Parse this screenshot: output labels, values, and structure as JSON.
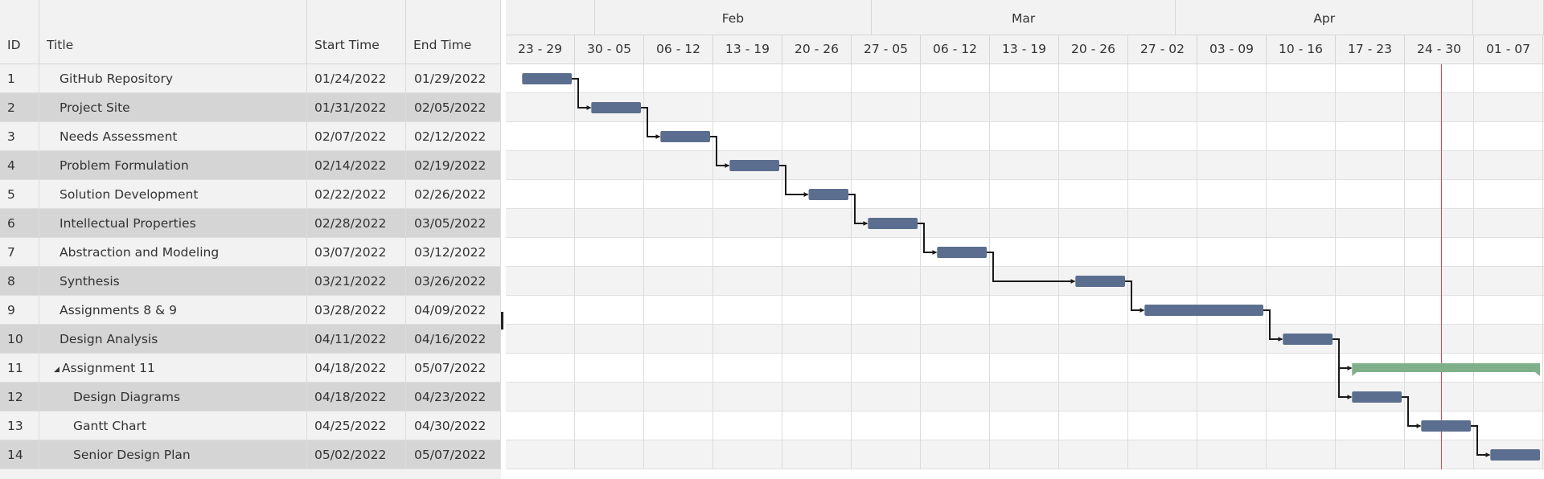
{
  "grid": {
    "columns": {
      "id": "ID",
      "title": "Title",
      "start": "Start Time",
      "end": "End Time"
    },
    "expander_icon": "triangle-down-icon",
    "tasks": [
      {
        "id": "1",
        "title": "GitHub Repository",
        "start": "01/24/2022",
        "end": "01/29/2022",
        "level": 1
      },
      {
        "id": "2",
        "title": "Project Site",
        "start": "01/31/2022",
        "end": "02/05/2022",
        "level": 1
      },
      {
        "id": "3",
        "title": "Needs Assessment",
        "start": "02/07/2022",
        "end": "02/12/2022",
        "level": 1
      },
      {
        "id": "4",
        "title": "Problem Formulation",
        "start": "02/14/2022",
        "end": "02/19/2022",
        "level": 1
      },
      {
        "id": "5",
        "title": "Solution Development",
        "start": "02/22/2022",
        "end": "02/26/2022",
        "level": 1
      },
      {
        "id": "6",
        "title": "Intellectual Properties",
        "start": "02/28/2022",
        "end": "03/05/2022",
        "level": 1
      },
      {
        "id": "7",
        "title": "Abstraction and Modeling",
        "start": "03/07/2022",
        "end": "03/12/2022",
        "level": 1
      },
      {
        "id": "8",
        "title": "Synthesis",
        "start": "03/21/2022",
        "end": "03/26/2022",
        "level": 1
      },
      {
        "id": "9",
        "title": "Assignments 8 & 9",
        "start": "03/28/2022",
        "end": "04/09/2022",
        "level": 1
      },
      {
        "id": "10",
        "title": "Design Analysis",
        "start": "04/11/2022",
        "end": "04/16/2022",
        "level": 1
      },
      {
        "id": "11",
        "title": "Assignment 11",
        "start": "04/18/2022",
        "end": "05/07/2022",
        "level": 1,
        "summary": true
      },
      {
        "id": "12",
        "title": "Design Diagrams",
        "start": "04/18/2022",
        "end": "04/23/2022",
        "level": 2
      },
      {
        "id": "13",
        "title": "Gantt Chart",
        "start": "04/25/2022",
        "end": "04/30/2022",
        "level": 2
      },
      {
        "id": "14",
        "title": "Senior Design Plan",
        "start": "05/02/2022",
        "end": "05/07/2022",
        "level": 2
      }
    ]
  },
  "timeline": {
    "months": [
      {
        "label": "Feb",
        "weeks": 4
      },
      {
        "label": "Mar",
        "weeks": 4.4
      },
      {
        "label": "Apr",
        "weeks": 4.3
      }
    ],
    "weeks": [
      "23 - 29",
      "30 - 05",
      "06 - 12",
      "13 - 19",
      "20 - 26",
      "27 - 05",
      "06 - 12",
      "13 - 19",
      "20 - 26",
      "27 - 02",
      "03 - 09",
      "10 - 16",
      "17 - 23",
      "24 - 30",
      "01 - 07"
    ],
    "timeline_start": "2022-01-23",
    "today": "2022-04-27",
    "colors": {
      "task": "#5b6e8f",
      "summary": "#7fb08a",
      "today": "#e64545",
      "dependency": "#1a1a1a"
    }
  }
}
